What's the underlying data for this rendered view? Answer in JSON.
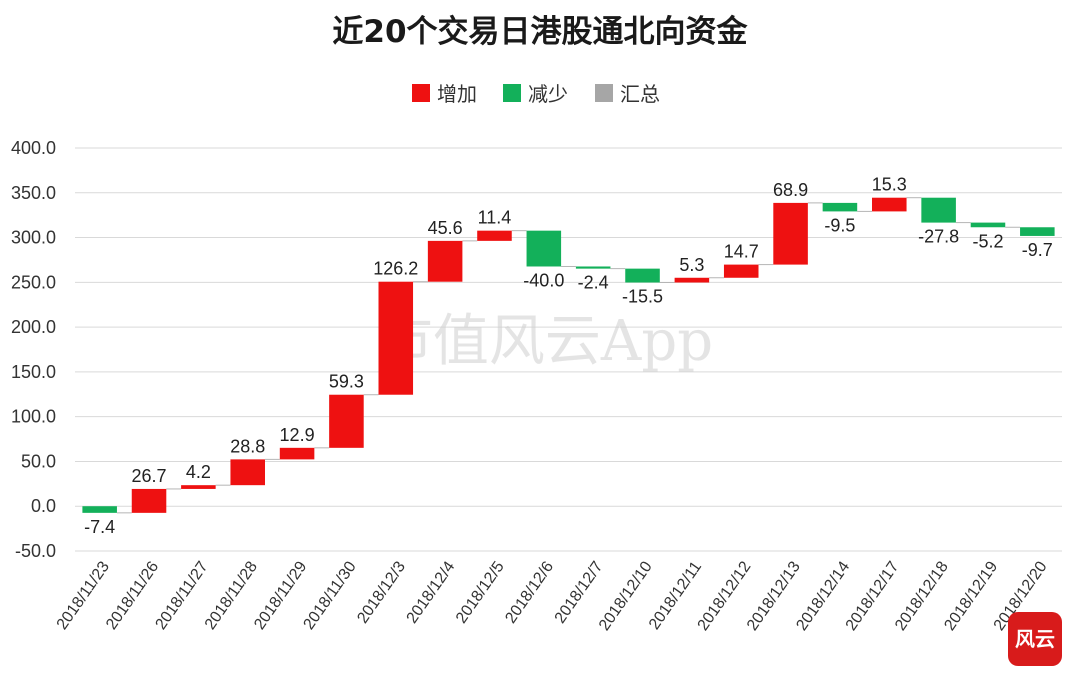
{
  "chart_data": {
    "type": "waterfall",
    "title": "近20个交易日港股通北向资金",
    "legend": [
      {
        "name": "增加",
        "color": "#ee1111"
      },
      {
        "name": "减少",
        "color": "#13b05a"
      },
      {
        "name": "汇总",
        "color": "#a6a6a6"
      }
    ],
    "legend_position": "top",
    "grid": true,
    "ylim": [
      -50,
      400
    ],
    "yticks": [
      "400.0",
      "350.0",
      "300.0",
      "250.0",
      "200.0",
      "150.0",
      "100.0",
      "50.0",
      "0.0",
      "-50.0"
    ],
    "categories": [
      "2018/11/23",
      "2018/11/26",
      "2018/11/27",
      "2018/11/28",
      "2018/11/29",
      "2018/11/30",
      "2018/12/3",
      "2018/12/4",
      "2018/12/5",
      "2018/12/6",
      "2018/12/7",
      "2018/12/10",
      "2018/12/11",
      "2018/12/12",
      "2018/12/13",
      "2018/12/14",
      "2018/12/17",
      "2018/12/18",
      "2018/12/19",
      "2018/12/20"
    ],
    "values": [
      -7.4,
      26.7,
      4.2,
      28.8,
      12.9,
      59.3,
      126.2,
      45.6,
      11.4,
      -40.0,
      -2.4,
      -15.5,
      5.3,
      14.7,
      68.9,
      -9.5,
      15.3,
      -27.8,
      -5.2,
      -9.7
    ],
    "labels": [
      "-7.4",
      "26.7",
      "4.2",
      "28.8",
      "12.9",
      "59.3",
      "126.2",
      "45.6",
      "11.4",
      "-40.0",
      "-2.4",
      "-15.5",
      "5.3",
      "14.7",
      "68.9",
      "-9.5",
      "15.3",
      "-27.8",
      "-5.2",
      "-9.7"
    ],
    "increase_color": "#ee1111",
    "decrease_color": "#13b05a"
  },
  "watermark": "市值风云App",
  "seal": "风云"
}
